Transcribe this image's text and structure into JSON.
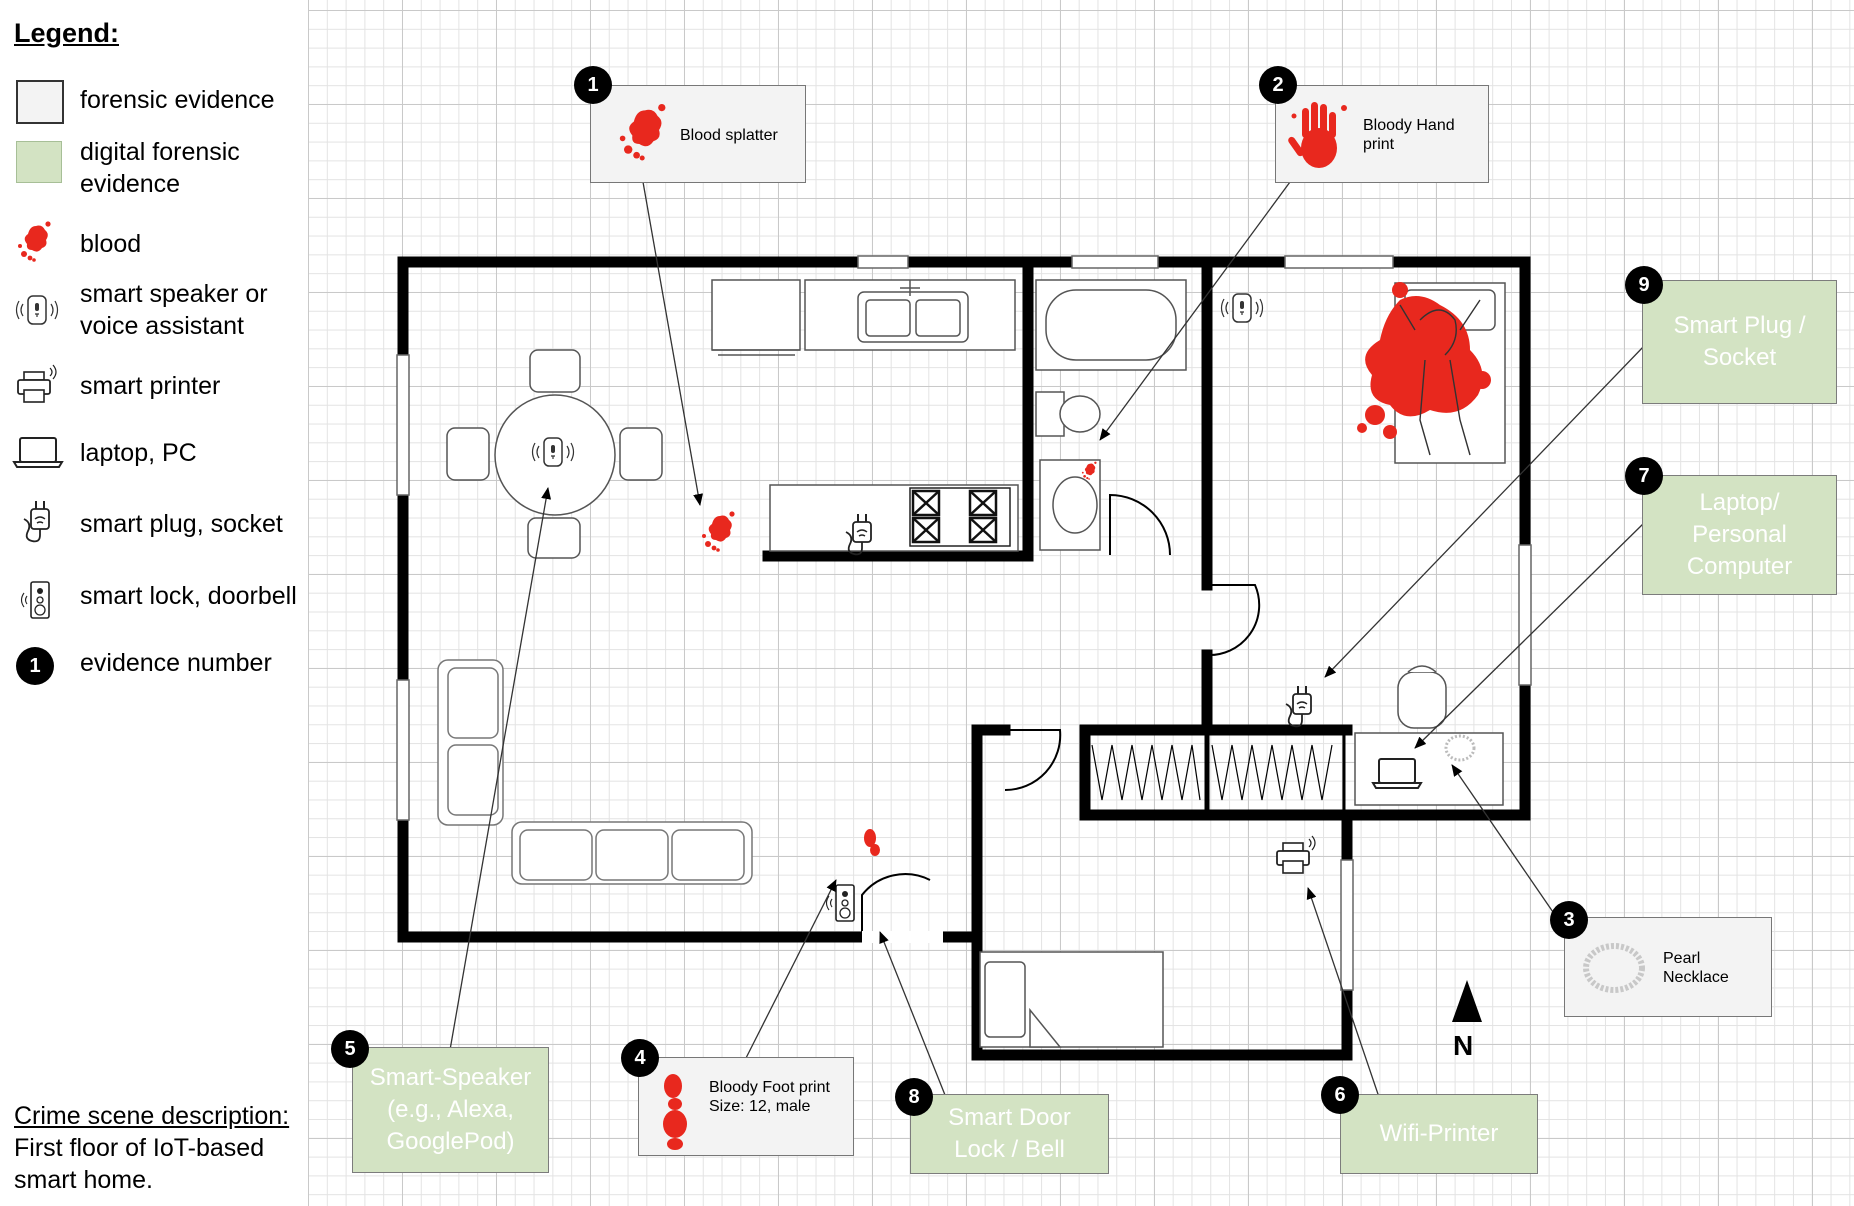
{
  "legend": {
    "title": "Legend:",
    "items": [
      {
        "label": "forensic evidence",
        "icon": "grey-box-icon"
      },
      {
        "label": "digital forensic evidence",
        "icon": "green-box-icon"
      },
      {
        "label": "blood",
        "icon": "blood-icon"
      },
      {
        "label": "smart speaker or voice assistant",
        "icon": "smart-speaker-icon"
      },
      {
        "label": "smart printer",
        "icon": "printer-icon"
      },
      {
        "label": "laptop, PC",
        "icon": "laptop-icon"
      },
      {
        "label": "smart plug, socket",
        "icon": "smart-plug-icon"
      },
      {
        "label": "smart lock, doorbell",
        "icon": "smart-lock-icon"
      },
      {
        "label": "evidence number",
        "icon": "evidence-number-icon",
        "badge": "1"
      }
    ]
  },
  "description": {
    "heading": "Crime scene description:",
    "text": "First floor of IoT-based smart home."
  },
  "evidence": [
    {
      "number": "1",
      "type": "forensic",
      "label": "Blood splatter"
    },
    {
      "number": "2",
      "type": "forensic",
      "label": "Bloody Hand print"
    },
    {
      "number": "3",
      "type": "forensic",
      "label": "Pearl Necklace"
    },
    {
      "number": "4",
      "type": "forensic",
      "label": "Bloody Foot print Size: 12, male"
    },
    {
      "number": "5",
      "type": "digital",
      "label": "Smart-Speaker (e.g., Alexa, GooglePod)"
    },
    {
      "number": "6",
      "type": "digital",
      "label": "Wifi-Printer"
    },
    {
      "number": "7",
      "type": "digital",
      "label": "Laptop/ Personal Computer"
    },
    {
      "number": "8",
      "type": "digital",
      "label": "Smart Door Lock / Bell"
    },
    {
      "number": "9",
      "type": "digital",
      "label": "Smart Plug / Socket"
    }
  ],
  "compass": {
    "label": "N"
  },
  "colors": {
    "wall": "#000000",
    "blood": "#e8281e",
    "digital": "#d3e3c3",
    "forensic": "#f3f3f3"
  }
}
